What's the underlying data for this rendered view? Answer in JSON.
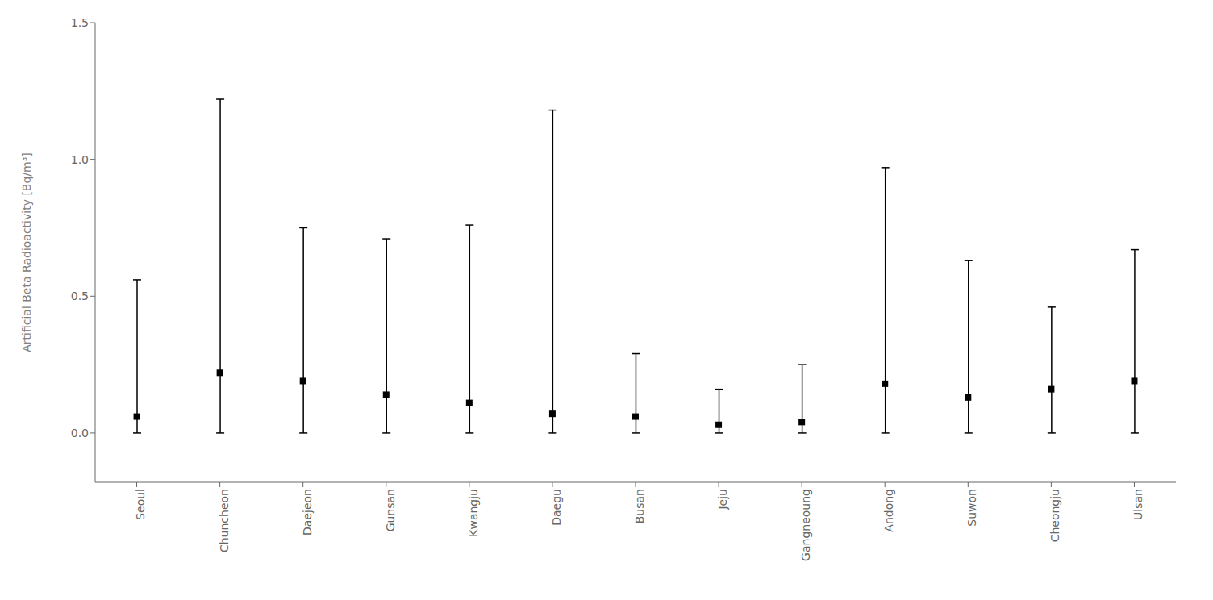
{
  "chart_data": {
    "type": "scatter",
    "categories": [
      "Seoul",
      "Chuncheon",
      "Daejeon",
      "Gunsan",
      "Kwangju",
      "Daegu",
      "Busan",
      "Jeju",
      "Gangneoung",
      "Andong",
      "Suwon",
      "Cheongju",
      "Ulsan"
    ],
    "values": [
      0.06,
      0.22,
      0.19,
      0.14,
      0.11,
      0.07,
      0.06,
      0.03,
      0.04,
      0.18,
      0.13,
      0.16,
      0.19
    ],
    "top_values": [
      0.56,
      1.22,
      0.75,
      0.71,
      0.76,
      1.18,
      0.29,
      0.16,
      0.25,
      0.97,
      0.63,
      0.46,
      0.67
    ],
    "bottom_values": [
      0.0,
      0.0,
      0.0,
      0.0,
      0.0,
      0.0,
      0.0,
      0.0,
      0.0,
      0.0,
      0.0,
      0.0,
      0.0
    ],
    "ylabel": "Artificial Beta Radioactivity [Bq/m³]",
    "ylim": [
      -0.18,
      1.5
    ],
    "yticks": [
      {
        "value": 0,
        "label": "0.0"
      },
      0.5,
      {
        "value": 1,
        "label": "1.0"
      },
      1.5
    ],
    "color": "#000000",
    "marker": "square",
    "grid": false
  }
}
